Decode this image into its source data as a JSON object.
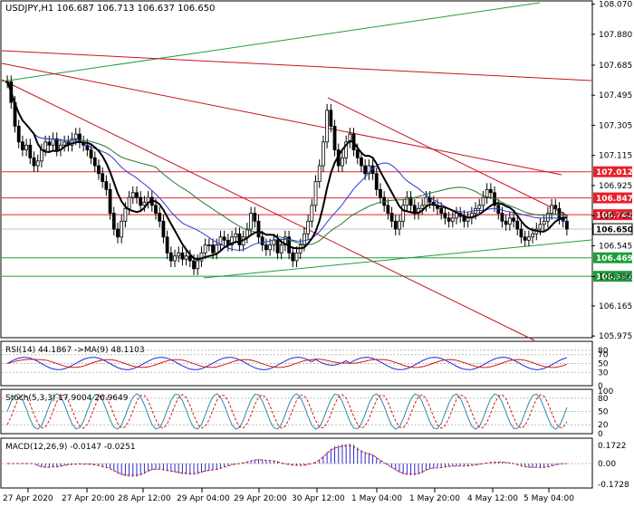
{
  "chart_data": {
    "type": "candlestick",
    "symbol_info": "USDJPY,H1  106.687 106.713 106.637 106.650",
    "price_axis": {
      "ylim": [
        105.97,
        108.085
      ],
      "ticks": [
        "108.070",
        "107.880",
        "107.685",
        "107.495",
        "107.305",
        "107.115",
        "106.925",
        "106.735",
        "106.545",
        "106.350",
        "106.165",
        "105.975"
      ]
    },
    "levels": [
      {
        "label": "107.012",
        "value": 107.012,
        "color": "#e8202a"
      },
      {
        "label": "106.847",
        "value": 106.847,
        "color": "#e8202a"
      },
      {
        "label": "106.741",
        "value": 106.741,
        "color": "#e8202a"
      },
      {
        "label": "106.650",
        "value": 106.65,
        "color": "#ffffff"
      },
      {
        "label": "106.469",
        "value": 106.469,
        "color": "#1e9e3b"
      },
      {
        "label": "106.352",
        "value": 106.352,
        "color": "#1e9e3b"
      }
    ],
    "close_series": [
      107.58,
      107.45,
      107.3,
      107.2,
      107.15,
      107.18,
      107.1,
      107.05,
      107.08,
      107.15,
      107.2,
      107.18,
      107.22,
      107.15,
      107.18,
      107.2,
      107.18,
      107.22,
      107.25,
      107.2,
      107.18,
      107.15,
      107.1,
      107.05,
      107.0,
      106.95,
      106.9,
      106.75,
      106.65,
      106.6,
      106.7,
      106.78,
      106.85,
      106.88,
      106.85,
      106.8,
      106.82,
      106.85,
      106.8,
      106.75,
      106.7,
      106.6,
      106.5,
      106.45,
      106.48,
      106.5,
      106.46,
      106.48,
      106.45,
      106.4,
      106.45,
      106.5,
      106.55,
      106.55,
      106.5,
      106.55,
      106.6,
      106.58,
      106.55,
      106.6,
      106.62,
      106.55,
      106.6,
      106.65,
      106.75,
      106.7,
      106.6,
      106.55,
      106.52,
      106.55,
      106.58,
      106.5,
      106.55,
      106.6,
      106.5,
      106.45,
      106.5,
      106.55,
      106.62,
      106.7,
      106.8,
      106.95,
      107.05,
      107.2,
      107.4,
      107.3,
      107.15,
      107.05,
      107.1,
      107.2,
      107.25,
      107.15,
      107.1,
      107.05,
      107.0,
      107.05,
      107.0,
      106.9,
      106.85,
      106.8,
      106.75,
      106.7,
      106.65,
      106.7,
      106.8,
      106.85,
      106.8,
      106.75,
      106.78,
      106.8,
      106.85,
      106.82,
      106.8,
      106.78,
      106.75,
      106.72,
      106.7,
      106.72,
      106.75,
      106.73,
      106.7,
      106.72,
      106.75,
      106.78,
      106.8,
      106.85,
      106.9,
      106.88,
      106.8,
      106.75,
      106.7,
      106.68,
      106.72,
      106.7,
      106.65,
      106.6,
      106.58,
      106.6,
      106.62,
      106.65,
      106.68,
      106.7,
      106.75,
      106.8,
      106.78,
      106.72,
      106.7,
      106.65
    ],
    "rsi": {
      "label": "RSI(14) 44.1867  ->MA(9) 48.1103",
      "levels": [
        "80",
        "70",
        "50",
        "30",
        "0"
      ]
    },
    "stoch": {
      "label": "Stoch(5,3,3) 17.9004 26.9649",
      "levels": [
        "100",
        "80",
        "50",
        "20",
        "0"
      ]
    },
    "macd": {
      "label": "MACD(12,26,9) -0.0147 -0.0251",
      "levels": [
        "0.1722",
        "0.00",
        "-0.1728"
      ]
    },
    "time_labels": [
      "27 Apr 2020",
      "27 Apr 20:00",
      "28 Apr 12:00",
      "29 Apr 04:00",
      "29 Apr 20:00",
      "30 Apr 12:00",
      "1 May 04:00",
      "1 May 20:00",
      "4 May 12:00",
      "5 May 04:00"
    ]
  }
}
